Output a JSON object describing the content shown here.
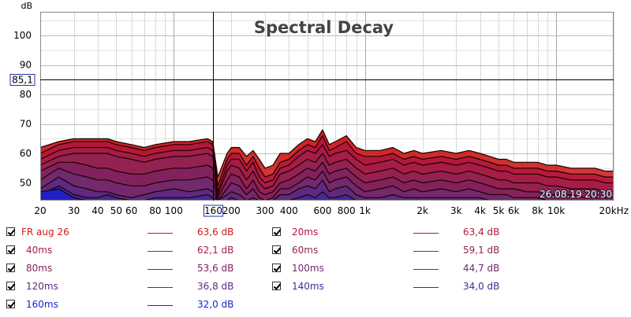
{
  "chart_data": {
    "type": "area",
    "title": "Spectral Decay",
    "ylabel": "dB",
    "xlabel": "",
    "x_scale": "log",
    "xlim": [
      20,
      20000
    ],
    "ylim": [
      44,
      108
    ],
    "grid": true,
    "y_ticks": [
      "50",
      "60",
      "70",
      "80",
      "90",
      "100"
    ],
    "x_ticks": [
      {
        "v": 20,
        "label": "20"
      },
      {
        "v": 30,
        "label": "30"
      },
      {
        "v": 40,
        "label": "40"
      },
      {
        "v": 50,
        "label": "50"
      },
      {
        "v": 60,
        "label": "60"
      },
      {
        "v": 80,
        "label": "80"
      },
      {
        "v": 100,
        "label": "100"
      },
      {
        "v": 200,
        "label": "200"
      },
      {
        "v": 300,
        "label": "300"
      },
      {
        "v": 400,
        "label": "400"
      },
      {
        "v": 600,
        "label": "600"
      },
      {
        "v": 800,
        "label": "800"
      },
      {
        "v": 1000,
        "label": "1k"
      },
      {
        "v": 2000,
        "label": "2k"
      },
      {
        "v": 3000,
        "label": "3k"
      },
      {
        "v": 4000,
        "label": "4k"
      },
      {
        "v": 5000,
        "label": "5k"
      },
      {
        "v": 6000,
        "label": "6k"
      },
      {
        "v": 8000,
        "label": "8k"
      },
      {
        "v": 10000,
        "label": "10k"
      },
      {
        "v": 20000,
        "label": "20kHz"
      }
    ],
    "cursor": {
      "x": 160,
      "x_label": "160",
      "y": 85.1,
      "y_label": "85,1"
    },
    "timestamp": "26.08.19 20:30",
    "x": [
      20,
      25,
      30,
      35,
      40,
      45,
      50,
      60,
      70,
      80,
      100,
      120,
      150,
      160,
      170,
      190,
      200,
      220,
      240,
      260,
      280,
      300,
      330,
      360,
      400,
      450,
      500,
      550,
      600,
      650,
      700,
      800,
      900,
      1000,
      1200,
      1400,
      1600,
      1800,
      2000,
      2500,
      3000,
      3500,
      4000,
      4500,
      5000,
      5500,
      6000,
      7000,
      8000,
      9000,
      10000,
      12000,
      14000,
      16000,
      18000,
      20000
    ],
    "series": [
      {
        "name": "FR aug 26",
        "color": "#cc1b1b",
        "value_label": "63,6 dB",
        "checked": true,
        "values": [
          62,
          64,
          65,
          65,
          65,
          65,
          64,
          63,
          62,
          63,
          64,
          64,
          65,
          64,
          52,
          60,
          62,
          62,
          59,
          61,
          58,
          55,
          56,
          60,
          60,
          63,
          65,
          64,
          68,
          63,
          64,
          66,
          62,
          61,
          61,
          62,
          60,
          61,
          60,
          61,
          60,
          61,
          60,
          59,
          58,
          58,
          57,
          57,
          57,
          56,
          56,
          55,
          55,
          55,
          54,
          54
        ]
      },
      {
        "name": "20ms",
        "color": "#b2173c",
        "value_label": "63,4 dB",
        "checked": true,
        "values": [
          60,
          63,
          64,
          64,
          64,
          64,
          63,
          62,
          61,
          62,
          63,
          63,
          64,
          63,
          49,
          58,
          60,
          60,
          56,
          59,
          55,
          52,
          53,
          57,
          58,
          61,
          63,
          62,
          66,
          61,
          62,
          64,
          60,
          59,
          59,
          60,
          58,
          59,
          58,
          59,
          58,
          59,
          58,
          57,
          56,
          56,
          55,
          55,
          55,
          54,
          54,
          53,
          53,
          53,
          52,
          52
        ]
      },
      {
        "name": "40ms",
        "color": "#a51d47",
        "value_label": "62,1 dB",
        "checked": true,
        "values": [
          58,
          61,
          62,
          62,
          62,
          62,
          61,
          60,
          59,
          60,
          61,
          61,
          62,
          61,
          47,
          56,
          58,
          58,
          54,
          57,
          52,
          50,
          51,
          55,
          56,
          59,
          61,
          60,
          63,
          59,
          60,
          61,
          58,
          56,
          57,
          58,
          56,
          57,
          56,
          57,
          56,
          57,
          56,
          55,
          54,
          54,
          53,
          53,
          53,
          52,
          52,
          51,
          51,
          51,
          50,
          50
        ]
      },
      {
        "name": "60ms",
        "color": "#922252",
        "value_label": "59,1 dB",
        "checked": true,
        "values": [
          56,
          59,
          60,
          60,
          60,
          60,
          59,
          58,
          57,
          58,
          59,
          59,
          60,
          59,
          46,
          54,
          56,
          55,
          51,
          54,
          50,
          48,
          49,
          53,
          54,
          56,
          58,
          57,
          60,
          56,
          57,
          58,
          55,
          53,
          54,
          55,
          53,
          54,
          53,
          54,
          53,
          54,
          53,
          52,
          51,
          51,
          50,
          50,
          50,
          49,
          49,
          48,
          48,
          48,
          47,
          47
        ]
      },
      {
        "name": "80ms",
        "color": "#80225e",
        "value_label": "53,6 dB",
        "checked": true,
        "values": [
          54,
          57,
          57,
          56,
          55,
          55,
          54,
          53,
          53,
          54,
          55,
          55,
          56,
          55,
          45,
          51,
          53,
          52,
          48,
          51,
          47,
          46,
          47,
          50,
          51,
          53,
          55,
          54,
          57,
          53,
          54,
          55,
          52,
          50,
          51,
          52,
          50,
          51,
          50,
          51,
          50,
          51,
          50,
          49,
          48,
          48,
          48,
          47,
          47,
          46,
          46,
          46,
          45,
          45,
          45,
          45
        ]
      },
      {
        "name": "100ms",
        "color": "#702a6f",
        "value_label": "44,7 dB",
        "checked": true,
        "values": [
          51,
          55,
          53,
          52,
          51,
          51,
          50,
          49,
          49,
          50,
          51,
          51,
          52,
          51,
          44,
          48,
          50,
          49,
          46,
          48,
          45,
          44,
          45,
          48,
          48,
          50,
          52,
          51,
          54,
          50,
          51,
          52,
          49,
          47,
          48,
          49,
          47,
          48,
          47,
          48,
          47,
          48,
          47,
          46,
          46,
          46,
          45,
          45,
          45,
          44,
          44,
          44,
          44,
          44,
          44,
          44
        ]
      },
      {
        "name": "120ms",
        "color": "#5a2a82",
        "value_label": "36,8 dB",
        "checked": true,
        "values": [
          48,
          52,
          49,
          48,
          47,
          47,
          46,
          45,
          46,
          47,
          48,
          47,
          48,
          47,
          44,
          46,
          47,
          46,
          44,
          45,
          44,
          44,
          44,
          46,
          46,
          48,
          49,
          48,
          51,
          47,
          48,
          49,
          46,
          45,
          45,
          46,
          45,
          45,
          45,
          45,
          45,
          45,
          45,
          44,
          44,
          44,
          44,
          44,
          44,
          44,
          44,
          44,
          44,
          44,
          44,
          44
        ]
      },
      {
        "name": "140ms",
        "color": "#3f2a99",
        "value_label": "34,0 dB",
        "checked": true,
        "values": [
          46,
          49,
          46,
          45,
          45,
          46,
          45,
          44,
          44,
          45,
          45,
          45,
          46,
          45,
          44,
          44,
          45,
          44,
          44,
          44,
          44,
          44,
          44,
          44,
          44,
          45,
          46,
          45,
          47,
          45,
          45,
          46,
          44,
          44,
          44,
          44,
          44,
          44,
          44,
          44,
          44,
          44,
          44,
          44,
          44,
          44,
          44,
          44,
          44,
          44,
          44,
          44,
          44,
          44,
          44,
          44
        ]
      },
      {
        "name": "160ms",
        "color": "#1b1fc8",
        "value_label": "32,0 dB",
        "checked": true,
        "values": [
          47,
          48,
          45,
          44,
          44,
          44,
          44,
          44,
          44,
          44,
          44,
          44,
          44,
          44,
          44,
          44,
          44,
          44,
          44,
          44,
          44,
          44,
          44,
          44,
          44,
          44,
          44,
          44,
          44,
          44,
          44,
          44,
          44,
          44,
          44,
          44,
          44,
          44,
          44,
          44,
          44,
          44,
          44,
          44,
          44,
          44,
          44,
          44,
          44,
          44,
          44,
          44,
          44,
          44,
          44,
          44
        ]
      }
    ]
  }
}
